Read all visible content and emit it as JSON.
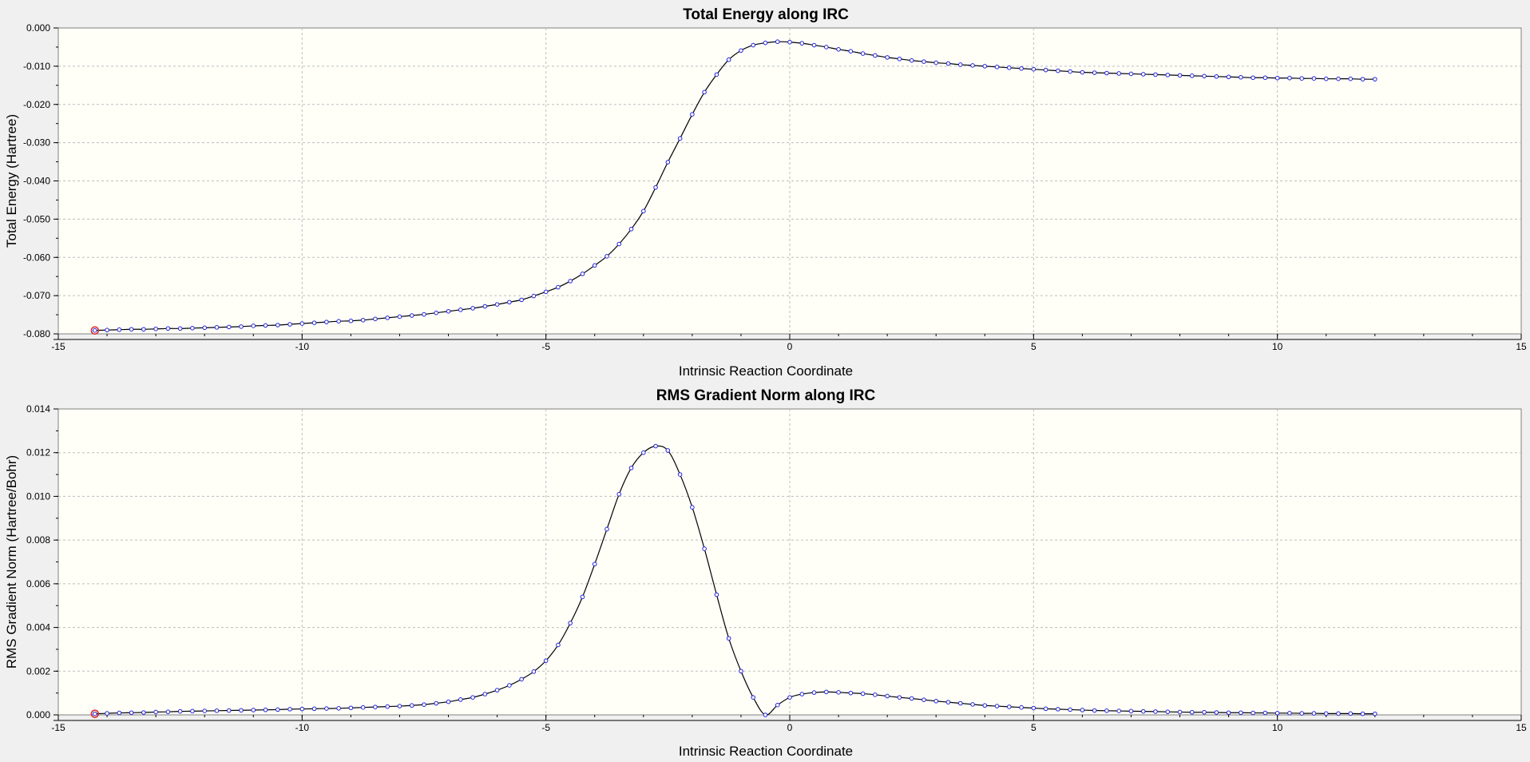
{
  "chart_data": [
    {
      "type": "line",
      "title": "Total Energy along IRC",
      "xlabel": "Intrinsic Reaction Coordinate",
      "ylabel": "Total Energy (Hartree)",
      "xlim": [
        -15,
        15
      ],
      "ylim": [
        -0.08,
        0.0
      ],
      "x_ticks": [
        "-15",
        "-10",
        "-5",
        "0",
        "5",
        "10",
        "15"
      ],
      "y_ticks": [
        "0.000",
        "-0.010",
        "-0.020",
        "-0.030",
        "-0.040",
        "-0.050",
        "-0.060",
        "-0.070",
        "-0.080"
      ],
      "grid": true,
      "highlighted_point": [
        -14.25,
        -0.0791
      ],
      "x": [
        -14.25,
        -14.0,
        -13.75,
        -13.5,
        -13.25,
        -13.0,
        -12.75,
        -12.5,
        -12.25,
        -12.0,
        -11.75,
        -11.5,
        -11.25,
        -11.0,
        -10.75,
        -10.5,
        -10.25,
        -10.0,
        -9.75,
        -9.5,
        -9.25,
        -9.0,
        -8.75,
        -8.5,
        -8.25,
        -8.0,
        -7.75,
        -7.5,
        -7.25,
        -7.0,
        -6.75,
        -6.5,
        -6.25,
        -6.0,
        -5.75,
        -5.5,
        -5.25,
        -5.0,
        -4.75,
        -4.5,
        -4.25,
        -4.0,
        -3.75,
        -3.5,
        -3.25,
        -3.0,
        -2.75,
        -2.5,
        -2.25,
        -2.0,
        -1.75,
        -1.5,
        -1.25,
        -1.0,
        -0.75,
        -0.5,
        -0.25,
        0.0,
        0.25,
        0.5,
        0.75,
        1.0,
        1.25,
        1.5,
        1.75,
        2.0,
        2.25,
        2.5,
        2.75,
        3.0,
        3.25,
        3.5,
        3.75,
        4.0,
        4.25,
        4.5,
        4.75,
        5.0,
        5.25,
        5.5,
        5.75,
        6.0,
        6.25,
        6.5,
        6.75,
        7.0,
        7.25,
        7.5,
        7.75,
        8.0,
        8.25,
        8.5,
        8.75,
        9.0,
        9.25,
        9.5,
        9.75,
        10.0,
        10.25,
        10.5,
        10.75,
        11.0,
        11.25,
        11.5,
        11.75,
        12.0
      ],
      "y": [
        -0.0791,
        -0.079,
        -0.0789,
        -0.0788,
        -0.0788,
        -0.0787,
        -0.0786,
        -0.0786,
        -0.0785,
        -0.0784,
        -0.0783,
        -0.0782,
        -0.0781,
        -0.0779,
        -0.0778,
        -0.0777,
        -0.0775,
        -0.0773,
        -0.0771,
        -0.0769,
        -0.0767,
        -0.0766,
        -0.0764,
        -0.0761,
        -0.0758,
        -0.0755,
        -0.0752,
        -0.0749,
        -0.0745,
        -0.0741,
        -0.0737,
        -0.0733,
        -0.0728,
        -0.0723,
        -0.0717,
        -0.0711,
        -0.0701,
        -0.069,
        -0.0678,
        -0.0662,
        -0.0643,
        -0.0621,
        -0.0597,
        -0.0565,
        -0.0526,
        -0.0479,
        -0.0417,
        -0.0351,
        -0.0289,
        -0.0226,
        -0.0168,
        -0.0122,
        -0.0083,
        -0.0059,
        -0.0045,
        -0.0039,
        -0.0036,
        -0.0037,
        -0.004,
        -0.0045,
        -0.005,
        -0.0056,
        -0.0061,
        -0.0067,
        -0.0072,
        -0.0077,
        -0.0081,
        -0.0085,
        -0.0088,
        -0.0091,
        -0.0093,
        -0.0096,
        -0.0098,
        -0.01,
        -0.0102,
        -0.0104,
        -0.0106,
        -0.0108,
        -0.011,
        -0.0112,
        -0.0114,
        -0.0116,
        -0.0117,
        -0.0118,
        -0.0119,
        -0.012,
        -0.0121,
        -0.0122,
        -0.0123,
        -0.0124,
        -0.0125,
        -0.0126,
        -0.0127,
        -0.0128,
        -0.0129,
        -0.013,
        -0.013,
        -0.0131,
        -0.0131,
        -0.0132,
        -0.0132,
        -0.0133,
        -0.0133,
        -0.0133,
        -0.0134,
        -0.0134
      ]
    },
    {
      "type": "line",
      "title": "RMS Gradient Norm along IRC",
      "xlabel": "Intrinsic Reaction Coordinate",
      "ylabel": "RMS Gradient Norm (Hartree/Bohr)",
      "xlim": [
        -15,
        15
      ],
      "ylim": [
        0.0,
        0.014
      ],
      "x_ticks": [
        "-15",
        "-10",
        "-5",
        "0",
        "5",
        "10",
        "15"
      ],
      "y_ticks": [
        "0.014",
        "0.012",
        "0.010",
        "0.008",
        "0.006",
        "0.004",
        "0.002",
        "0.000"
      ],
      "grid": true,
      "highlighted_point": [
        -14.25,
        5e-05
      ],
      "x": [
        -14.25,
        -14.0,
        -13.75,
        -13.5,
        -13.25,
        -13.0,
        -12.75,
        -12.5,
        -12.25,
        -12.0,
        -11.75,
        -11.5,
        -11.25,
        -11.0,
        -10.75,
        -10.5,
        -10.25,
        -10.0,
        -9.75,
        -9.5,
        -9.25,
        -9.0,
        -8.75,
        -8.5,
        -8.25,
        -8.0,
        -7.75,
        -7.5,
        -7.25,
        -7.0,
        -6.75,
        -6.5,
        -6.25,
        -6.0,
        -5.75,
        -5.5,
        -5.25,
        -5.0,
        -4.75,
        -4.5,
        -4.25,
        -4.0,
        -3.75,
        -3.5,
        -3.25,
        -3.0,
        -2.75,
        -2.5,
        -2.25,
        -2.0,
        -1.75,
        -1.5,
        -1.25,
        -1.0,
        -0.75,
        -0.5,
        -0.25,
        0.0,
        0.25,
        0.5,
        0.75,
        1.0,
        1.25,
        1.5,
        1.75,
        2.0,
        2.25,
        2.5,
        2.75,
        3.0,
        3.25,
        3.5,
        3.75,
        4.0,
        4.25,
        4.5,
        4.75,
        5.0,
        5.25,
        5.5,
        5.75,
        6.0,
        6.25,
        6.5,
        6.75,
        7.0,
        7.25,
        7.5,
        7.75,
        8.0,
        8.25,
        8.5,
        8.75,
        9.0,
        9.25,
        9.5,
        9.75,
        10.0,
        10.25,
        10.5,
        10.75,
        11.0,
        11.25,
        11.5,
        11.75,
        12.0
      ],
      "y": [
        5e-05,
        7e-05,
        9e-05,
        0.0001,
        0.00011,
        0.00013,
        0.00014,
        0.00016,
        0.00017,
        0.00018,
        0.00019,
        0.0002,
        0.00021,
        0.00022,
        0.00023,
        0.00024,
        0.00026,
        0.00027,
        0.00028,
        0.00029,
        0.0003,
        0.00032,
        0.00034,
        0.00036,
        0.00038,
        0.0004,
        0.00043,
        0.00047,
        0.00053,
        0.0006,
        0.0007,
        0.0008,
        0.00095,
        0.00113,
        0.00135,
        0.00163,
        0.00198,
        0.00248,
        0.0032,
        0.0042,
        0.0054,
        0.0069,
        0.0085,
        0.0101,
        0.0113,
        0.012,
        0.0123,
        0.0121,
        0.011,
        0.0095,
        0.0076,
        0.0055,
        0.0035,
        0.002,
        0.0008,
        0.0,
        0.00045,
        0.0008,
        0.00095,
        0.00102,
        0.00105,
        0.00103,
        0.001,
        0.00097,
        0.00092,
        0.00086,
        0.0008,
        0.00075,
        0.00069,
        0.00063,
        0.00058,
        0.00053,
        0.00048,
        0.00043,
        0.0004,
        0.00037,
        0.00034,
        0.00031,
        0.00028,
        0.00026,
        0.00024,
        0.00022,
        0.0002,
        0.00019,
        0.00018,
        0.00017,
        0.00016,
        0.00015,
        0.00014,
        0.00013,
        0.00012,
        0.00012,
        0.00011,
        0.0001,
        0.0001,
        9e-05,
        9e-05,
        8e-05,
        8e-05,
        7e-05,
        7e-05,
        6e-05,
        6e-05,
        6e-05,
        5e-05,
        5e-05
      ]
    }
  ],
  "colors": {
    "plot_background": "#fffff8",
    "line": "#000000",
    "marker": "#2222dd",
    "highlight": "#dd2222",
    "grid": "#bdbdbd"
  }
}
